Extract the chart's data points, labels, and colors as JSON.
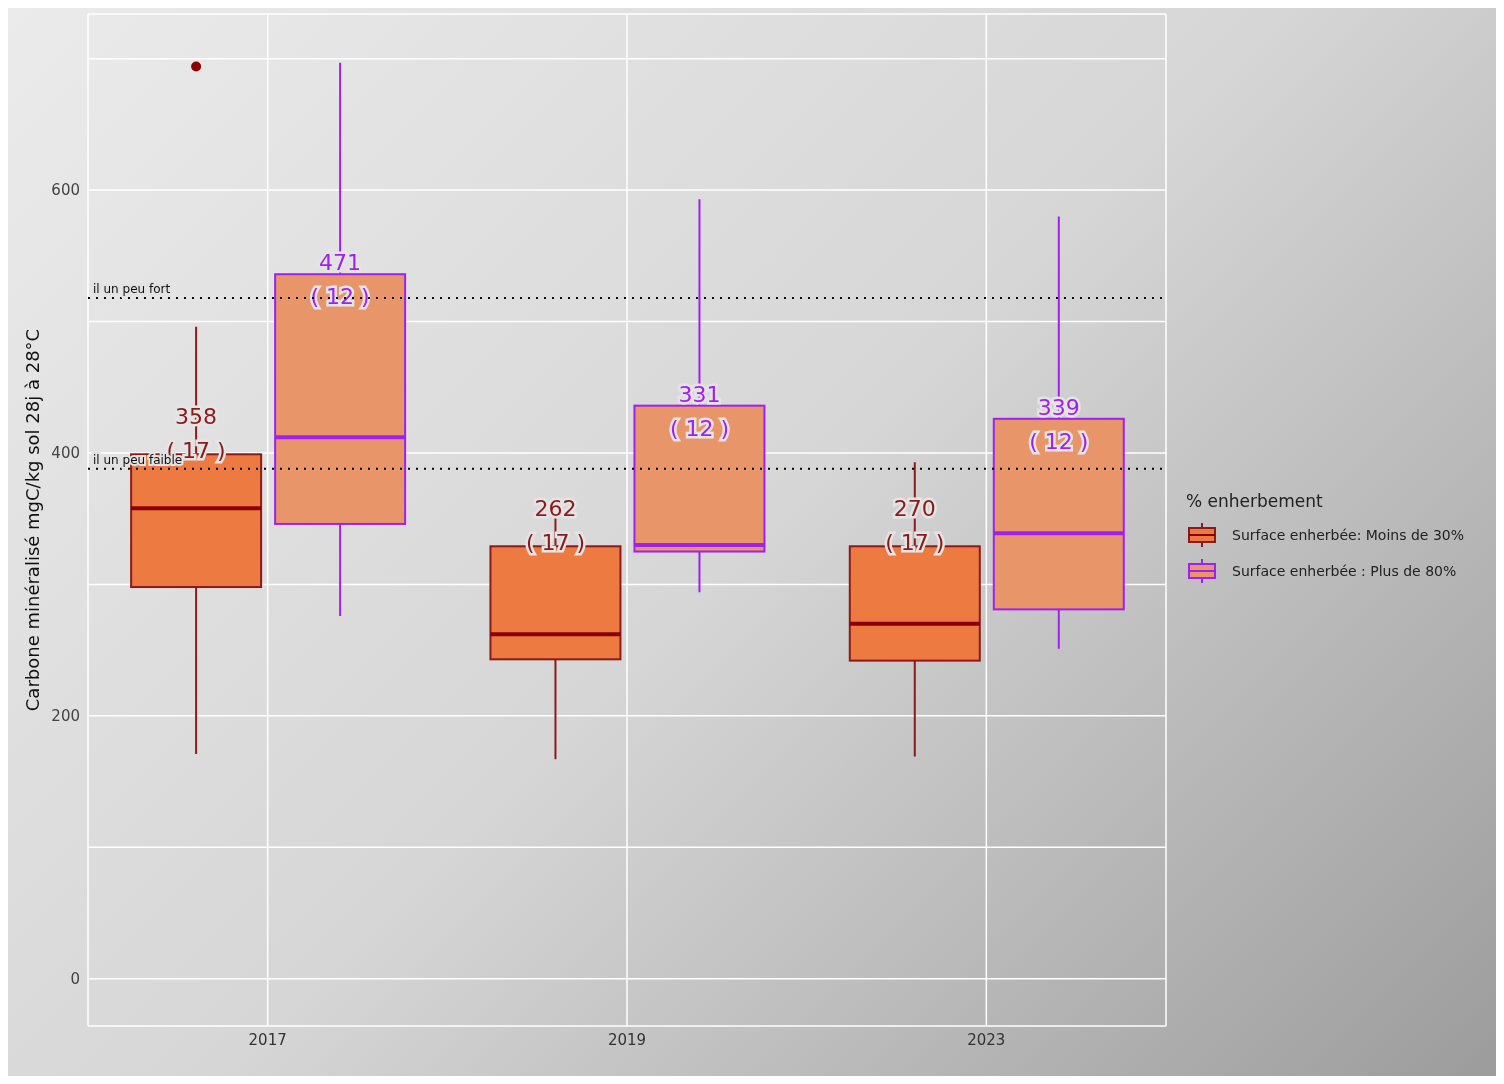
{
  "chart_data": {
    "type": "box",
    "ylabel": "Carbone minéralisé mgC/kg sol 28j à 28°C",
    "legend_title": "% enherbement",
    "categories": [
      "2017",
      "2019",
      "2023"
    ],
    "series": [
      {
        "name": "Surface enherbée: Moins de 30%",
        "color": "#ec7a41",
        "boxes": [
          {
            "low": 171,
            "q1": 298,
            "median": 358,
            "q3": 399,
            "high": 496,
            "outliers": [
              694
            ]
          },
          {
            "low": 167,
            "q1": 243,
            "median": 262,
            "q3": 329,
            "high": 355
          },
          {
            "low": 169,
            "q1": 242,
            "median": 270,
            "q3": 329,
            "high": 393
          }
        ]
      },
      {
        "name": "Surface enherbée : Plus de 80%",
        "color": "#e8956a",
        "boxes": [
          {
            "low": 276,
            "q1": 346,
            "median": 412,
            "q3": 536,
            "high": 697
          },
          {
            "low": 294,
            "q1": 325,
            "median": 330,
            "q3": 436,
            "high": 593
          },
          {
            "low": 251,
            "q1": 281,
            "median": 339,
            "q3": 426,
            "high": 580
          }
        ]
      }
    ],
    "ylim": [
      -36,
      734
    ],
    "yticks": [
      0,
      {
        "value": 100,
        "label": null
      },
      200,
      {
        "value": 300,
        "label": null
      },
      400,
      {
        "value": 500,
        "label": null
      },
      600,
      {
        "value": 700,
        "label": null
      }
    ],
    "grid": true,
    "legend": "right",
    "ref_lines": [
      {
        "axis": "y",
        "value": 518,
        "label": "il un peu fort",
        "line_style": "dotted",
        "color": "#000000"
      },
      {
        "axis": "y",
        "value": 388,
        "label": "il un peu faible",
        "line_style": "dotted",
        "color": "#000000"
      }
    ],
    "annotations": [
      "358\n( 17 )",
      "471\n( 12 )",
      "262\n( 17 )",
      "331\n( 12 )",
      "270\n( 17 )",
      "339\n( 12 )"
    ]
  }
}
